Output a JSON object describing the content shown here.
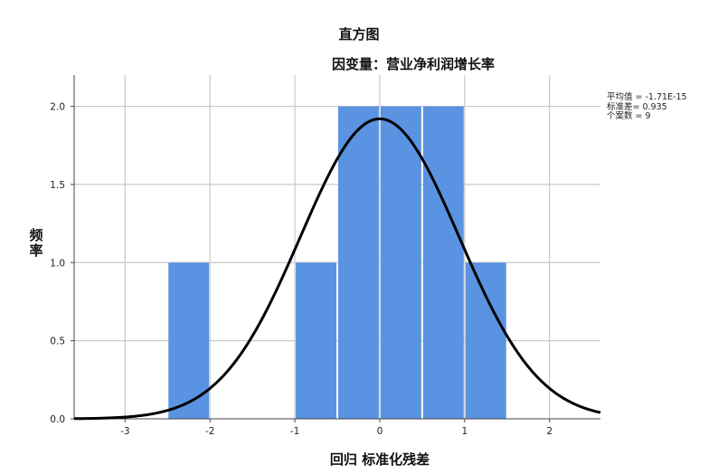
{
  "chart_data": {
    "type": "bar",
    "title": "直方图",
    "subtitle": "因变量：营业净利润增长率",
    "xlabel": "回归 标准化残差",
    "ylabel": "频率",
    "xlim": [
      -3.6,
      2.6
    ],
    "ylim": [
      0.0,
      2.2
    ],
    "xticks": [
      -3,
      -2,
      -1,
      0,
      1,
      2
    ],
    "xtick_labels": [
      "-3",
      "-2",
      "-1",
      "0",
      "1",
      "2"
    ],
    "yticks": [
      0.0,
      0.5,
      1.0,
      1.5,
      2.0
    ],
    "ytick_labels": [
      "0.0",
      "0.5",
      "1.0",
      "1.5",
      "2.0"
    ],
    "grid": true,
    "bar_color": "#5a93e2",
    "bins": [
      {
        "x0": -2.5,
        "x1": -2.0,
        "count": 1
      },
      {
        "x0": -1.0,
        "x1": -0.5,
        "count": 1
      },
      {
        "x0": -0.5,
        "x1": 0.0,
        "count": 2
      },
      {
        "x0": 0.0,
        "x1": 0.5,
        "count": 2
      },
      {
        "x0": 0.5,
        "x1": 1.0,
        "count": 2
      },
      {
        "x0": 1.0,
        "x1": 1.5,
        "count": 1
      }
    ],
    "normal_curve": {
      "mean": 0.0,
      "sd": 0.935,
      "n": 9,
      "bin_width": 0.5
    },
    "stats": {
      "mean_label": "平均值 = -1.71E-15",
      "sd_label": "标准差= 0.935",
      "n_label": "个案数 = 9"
    }
  }
}
